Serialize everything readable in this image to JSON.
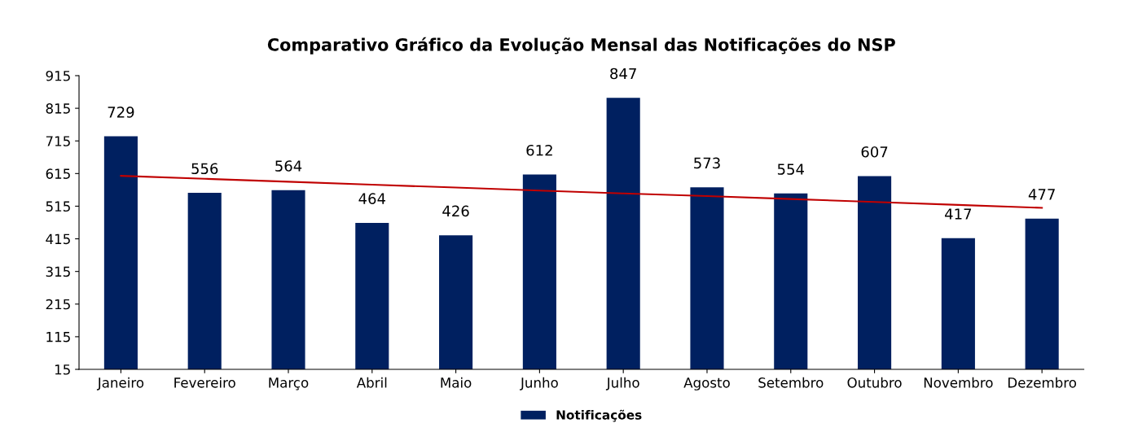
{
  "chart_data": {
    "type": "bar",
    "title": "Comparativo Gráfico da Evolução Mensal das Notificações do NSP",
    "categories": [
      "Janeiro",
      "Fevereiro",
      "Março",
      "Abril",
      "Maio",
      "Junho",
      "Julho",
      "Agosto",
      "Setembro",
      "Outubro",
      "Novembro",
      "Dezembro"
    ],
    "series": [
      {
        "name": "Notificações",
        "color": "#002060",
        "values": [
          729,
          556,
          564,
          464,
          426,
          612,
          847,
          573,
          554,
          607,
          417,
          477
        ],
        "value_labels": [
          "729",
          "556",
          "564",
          "464",
          "426",
          "612",
          "847",
          "573",
          "554",
          "607",
          "417",
          "477"
        ]
      },
      {
        "type": "line",
        "color": "#c00000",
        "values": [
          608,
          599,
          590,
          581,
          572,
          563,
          554,
          546,
          537,
          528,
          519,
          510
        ]
      }
    ],
    "ylim": [
      15,
      915
    ],
    "yticks": [
      15,
      115,
      215,
      315,
      415,
      515,
      615,
      715,
      815,
      915
    ],
    "grid": false,
    "legend": "bottom"
  }
}
